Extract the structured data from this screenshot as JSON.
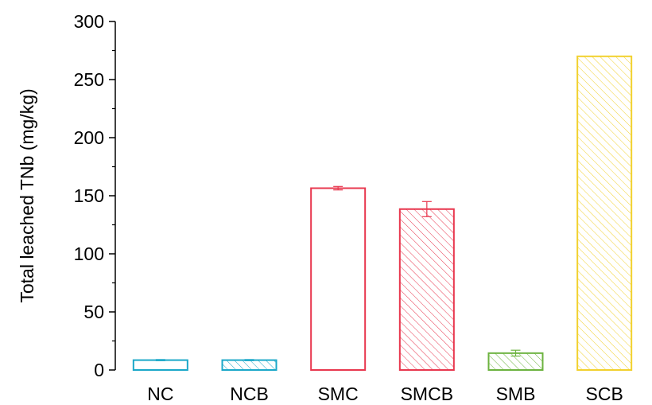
{
  "chart_data": {
    "type": "bar",
    "title": "",
    "xlabel": "",
    "ylabel": "Total leached TNb (mg/kg)",
    "ylim": [
      0,
      300
    ],
    "yticks": [
      "0",
      "50",
      "100",
      "150",
      "200",
      "250",
      "300"
    ],
    "categories": [
      "NC",
      "NCB",
      "SMC",
      "SMCB",
      "SMB",
      "SCB"
    ],
    "values": [
      8.5,
      8.5,
      156.5,
      138.5,
      14.5,
      270
    ],
    "errors": [
      0.5,
      0.5,
      1.5,
      6.5,
      2.5,
      0
    ],
    "hatched": [
      false,
      true,
      false,
      true,
      true,
      true
    ],
    "colors": [
      "#1BA8C9",
      "#1BA8C9",
      "#E8384F",
      "#E8384F",
      "#6CB33F",
      "#F2D12E"
    ],
    "grid": false,
    "legend": "none"
  }
}
